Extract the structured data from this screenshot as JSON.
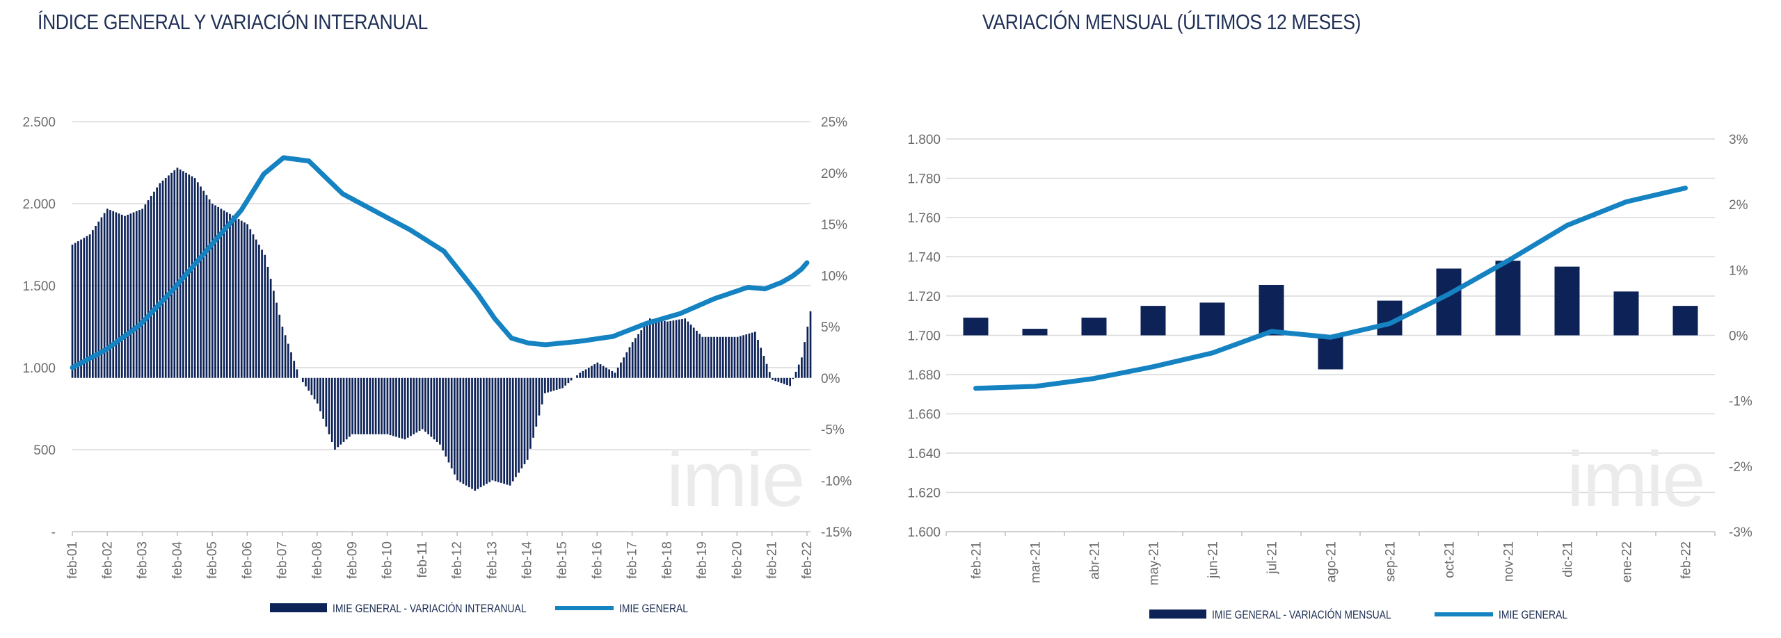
{
  "titles": {
    "left": "ÍNDICE GENERAL Y VARIACIÓN INTERANUAL",
    "right": "VARIACIÓN MENSUAL (ÚLTIMOS 12 MESES)"
  },
  "watermark": "imie",
  "colors": {
    "bars": "#0d2257",
    "line": "#1582c1",
    "grid": "#d9d9d9",
    "text": "#6b6b6b",
    "watermark": "#ebebeb"
  },
  "chart_data": [
    {
      "type": "bar",
      "title": "ÍNDICE GENERAL Y VARIACIÓN INTERANUAL",
      "x_tick_labels": [
        "feb-01",
        "feb-02",
        "feb-03",
        "feb-04",
        "feb-05",
        "feb-06",
        "feb-07",
        "feb-08",
        "feb-09",
        "feb-10",
        "feb-11",
        "feb-12",
        "feb-13",
        "feb-14",
        "feb-15",
        "feb-16",
        "feb-17",
        "feb-18",
        "feb-19",
        "feb-20",
        "feb-21",
        "feb-22"
      ],
      "y_left_ticks": [
        "-",
        "500",
        "1.000",
        "1.500",
        "2.000",
        "2.500"
      ],
      "y_right_ticks": [
        "-15%",
        "-10%",
        "-5%",
        "0%",
        "5%",
        "10%",
        "15%",
        "20%",
        "25%"
      ],
      "ylim_left": [
        0,
        2500
      ],
      "ylim_right": [
        -15,
        25
      ],
      "legend": [
        "IMIE GENERAL - VARIACIÓN INTERANUAL",
        "IMIE GENERAL"
      ],
      "legend_position": "bottom",
      "grid": true,
      "bars_variacion_interanual_pct_keypoints": [
        [
          0,
          13
        ],
        [
          6,
          14
        ],
        [
          12,
          16.5
        ],
        [
          18,
          15.8
        ],
        [
          24,
          16.5
        ],
        [
          30,
          19
        ],
        [
          36,
          20.5
        ],
        [
          42,
          19.5
        ],
        [
          48,
          17
        ],
        [
          54,
          16
        ],
        [
          60,
          15
        ],
        [
          66,
          12
        ],
        [
          72,
          5
        ],
        [
          78,
          0
        ],
        [
          84,
          -2.5
        ],
        [
          90,
          -7
        ],
        [
          96,
          -5.5
        ],
        [
          102,
          -5.5
        ],
        [
          108,
          -5.5
        ],
        [
          114,
          -6
        ],
        [
          120,
          -5
        ],
        [
          126,
          -6.5
        ],
        [
          132,
          -10
        ],
        [
          138,
          -11
        ],
        [
          144,
          -10
        ],
        [
          150,
          -10.5
        ],
        [
          156,
          -8
        ],
        [
          162,
          -1.5
        ],
        [
          168,
          -1
        ],
        [
          174,
          0.5
        ],
        [
          180,
          1.5
        ],
        [
          186,
          0.5
        ],
        [
          192,
          3.5
        ],
        [
          198,
          5.8
        ],
        [
          204,
          5.5
        ],
        [
          210,
          5.8
        ],
        [
          216,
          4
        ],
        [
          222,
          4
        ],
        [
          228,
          4
        ],
        [
          234,
          4.5
        ],
        [
          240,
          -0.2
        ],
        [
          246,
          -0.8
        ],
        [
          250,
          2
        ],
        [
          253,
          6.5
        ]
      ],
      "line_imie_general_keypoints": [
        [
          0,
          1000
        ],
        [
          12,
          1110
        ],
        [
          24,
          1260
        ],
        [
          36,
          1480
        ],
        [
          48,
          1720
        ],
        [
          60,
          1960
        ],
        [
          68,
          2180
        ],
        [
          75,
          2280
        ],
        [
          84,
          2260
        ],
        [
          96,
          2060
        ],
        [
          108,
          1950
        ],
        [
          120,
          1840
        ],
        [
          132,
          1710
        ],
        [
          144,
          1450
        ],
        [
          150,
          1300
        ],
        [
          156,
          1180
        ],
        [
          162,
          1150
        ],
        [
          168,
          1140
        ],
        [
          180,
          1160
        ],
        [
          192,
          1190
        ],
        [
          204,
          1270
        ],
        [
          216,
          1330
        ],
        [
          228,
          1420
        ],
        [
          240,
          1490
        ],
        [
          246,
          1480
        ],
        [
          252,
          1520
        ],
        [
          256,
          1560
        ],
        [
          259,
          1600
        ],
        [
          261,
          1640
        ]
      ]
    },
    {
      "type": "bar",
      "title": "VARIACIÓN MENSUAL (ÚLTIMOS 12 MESES)",
      "categories": [
        "feb-21",
        "mar-21",
        "abr-21",
        "may-21",
        "jun-21",
        "jul-21",
        "ago-21",
        "sep-21",
        "oct-21",
        "nov-21",
        "dic-21",
        "ene-22",
        "feb-22"
      ],
      "y_left_ticks": [
        "1.600",
        "1.620",
        "1.640",
        "1.660",
        "1.680",
        "1.700",
        "1.720",
        "1.740",
        "1.760",
        "1.780",
        "1.800"
      ],
      "y_right_ticks": [
        "-3%",
        "-2%",
        "-1%",
        "0%",
        "1%",
        "2%",
        "3%"
      ],
      "ylim_left": [
        1600,
        1800
      ],
      "ylim_right": [
        -3,
        3
      ],
      "series": [
        {
          "name": "IMIE GENERAL - VARIACIÓN MENSUAL",
          "axis": "right",
          "values": [
            0.27,
            0.1,
            0.27,
            0.45,
            0.5,
            0.77,
            -0.52,
            0.53,
            1.02,
            1.14,
            1.05,
            0.67,
            0.45
          ]
        },
        {
          "name": "IMIE GENERAL",
          "axis": "left",
          "values": [
            1673,
            1674,
            1678,
            1684,
            1691,
            1702,
            1699,
            1706,
            1721,
            1738,
            1756,
            1768,
            1775
          ]
        }
      ],
      "legend_position": "bottom",
      "grid": true
    }
  ]
}
